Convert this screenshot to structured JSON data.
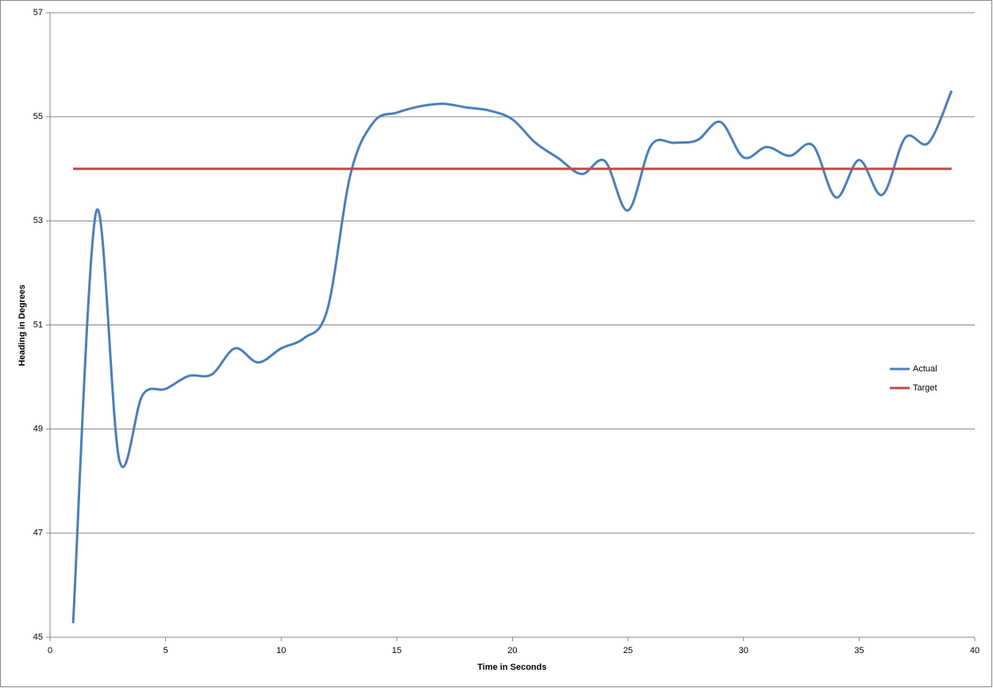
{
  "chart_data": {
    "type": "line",
    "x_label": "Time in Seconds",
    "y_label": "Heading in Degrees",
    "x": [
      1,
      2,
      3,
      4,
      5,
      6,
      7,
      8,
      9,
      10,
      11,
      12,
      13,
      14,
      15,
      16,
      17,
      18,
      19,
      20,
      21,
      22,
      23,
      24,
      25,
      26,
      27,
      28,
      29,
      30,
      31,
      32,
      33,
      34,
      35,
      36,
      37,
      38,
      39
    ],
    "series": [
      {
        "name": "Actual",
        "color": "#4a7ebb",
        "values": [
          45.27,
          53.18,
          48.4,
          49.65,
          49.77,
          50.02,
          50.05,
          50.55,
          50.28,
          50.55,
          50.75,
          51.3,
          53.9,
          54.9,
          55.08,
          55.2,
          55.25,
          55.18,
          55.12,
          54.95,
          54.5,
          54.2,
          53.9,
          54.15,
          53.2,
          54.45,
          54.5,
          54.55,
          54.9,
          54.22,
          54.42,
          54.25,
          54.45,
          53.45,
          54.17,
          53.5,
          54.6,
          54.5,
          55.5
        ]
      },
      {
        "name": "Target",
        "color": "#be4b48",
        "values": [
          54,
          54,
          54,
          54,
          54,
          54,
          54,
          54,
          54,
          54,
          54,
          54,
          54,
          54,
          54,
          54,
          54,
          54,
          54,
          54,
          54,
          54,
          54,
          54,
          54,
          54,
          54,
          54,
          54,
          54,
          54,
          54,
          54,
          54,
          54,
          54,
          54,
          54,
          54
        ]
      }
    ],
    "xlim": [
      0,
      40
    ],
    "xticks": [
      0,
      5,
      10,
      15,
      20,
      25,
      30,
      35,
      40
    ],
    "ylim": [
      45,
      57
    ],
    "yticks": [
      45,
      47,
      49,
      51,
      53,
      55,
      57
    ],
    "grid": true,
    "smooth": true,
    "legend": "right"
  }
}
